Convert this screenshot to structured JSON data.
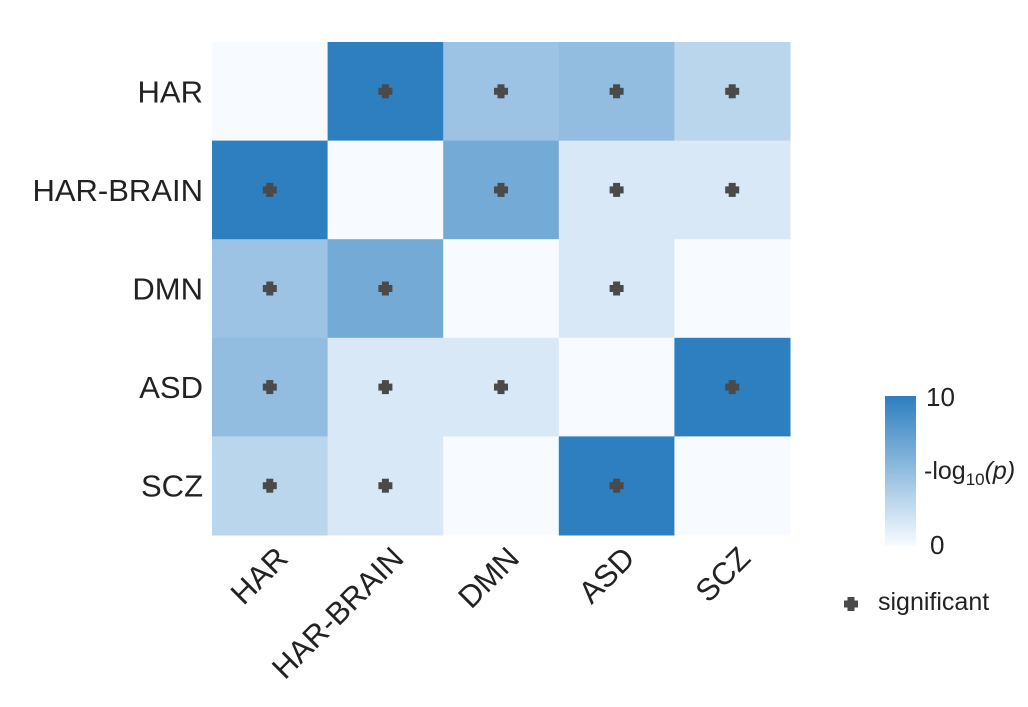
{
  "chart_data": {
    "type": "heatmap",
    "rows": [
      "HAR",
      "HAR-BRAIN",
      "DMN",
      "ASD",
      "SCZ"
    ],
    "columns": [
      "HAR",
      "HAR-BRAIN",
      "DMN",
      "ASD",
      "SCZ"
    ],
    "values": [
      [
        0,
        10,
        4.5,
        5,
        3
      ],
      [
        10,
        0,
        6.5,
        1.5,
        1.5
      ],
      [
        4.5,
        6.5,
        0,
        1.5,
        0
      ],
      [
        5,
        1.5,
        1.5,
        0,
        10
      ],
      [
        3,
        1.5,
        0,
        10,
        0
      ]
    ],
    "significant": [
      [
        false,
        true,
        true,
        true,
        true
      ],
      [
        true,
        false,
        true,
        true,
        true
      ],
      [
        true,
        true,
        false,
        true,
        false
      ],
      [
        true,
        true,
        true,
        false,
        true
      ],
      [
        true,
        true,
        false,
        true,
        false
      ]
    ],
    "colorbar": {
      "min": 0,
      "max": 10,
      "label_prefix": "-log",
      "label_sub": "10",
      "label_suffix": "(p)",
      "color_low": "#f7fbff",
      "color_high": "#2d7fc0"
    },
    "legend": {
      "marker_label": "significant",
      "marker_color": "#4a4a4a"
    }
  }
}
